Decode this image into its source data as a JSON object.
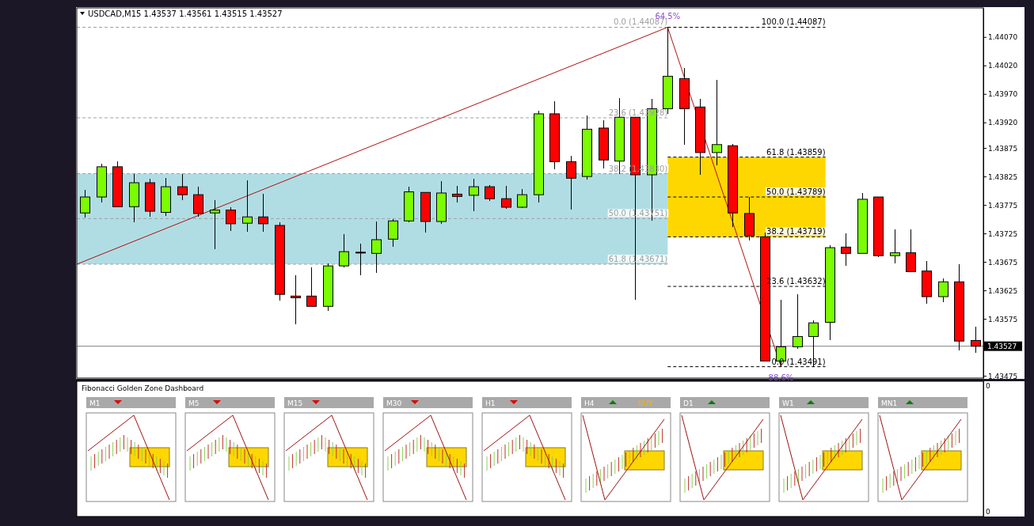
{
  "chart_data": [
    {
      "type": "candlestick",
      "title": "USDCAD,M15  1.43537 1.43561 1.43515 1.43527",
      "categories": [
        null,
        null,
        null,
        null,
        null,
        null,
        null,
        null,
        null,
        null,
        null,
        null,
        null,
        null,
        null,
        null,
        null,
        null,
        null,
        null,
        null,
        null,
        null,
        null,
        null,
        null,
        null,
        null,
        null,
        null,
        null,
        null,
        null,
        null,
        null,
        null,
        null,
        null,
        null,
        null,
        null,
        null,
        null,
        null,
        null,
        null,
        null,
        null,
        null,
        null,
        null,
        null,
        null,
        null,
        null,
        null
      ],
      "ohlc": [
        [
          1.43761,
          1.43802,
          1.43753,
          1.43789
        ],
        [
          1.43789,
          1.43847,
          1.43779,
          1.43842
        ],
        [
          1.43842,
          1.43852,
          1.43772,
          1.43772
        ],
        [
          1.43772,
          1.43829,
          1.43745,
          1.43814
        ],
        [
          1.43814,
          1.43821,
          1.43755,
          1.43764
        ],
        [
          1.43762,
          1.43823,
          1.43756,
          1.43807
        ],
        [
          1.43807,
          1.43829,
          1.43783,
          1.43793
        ],
        [
          1.43793,
          1.43807,
          1.43755,
          1.4376
        ],
        [
          1.43761,
          1.43783,
          1.43697,
          1.43766
        ],
        [
          1.43766,
          1.43771,
          1.4373,
          1.43742
        ],
        [
          1.43743,
          1.43818,
          1.43728,
          1.43754
        ],
        [
          1.43754,
          1.43794,
          1.43728,
          1.43742
        ],
        [
          1.43739,
          1.43744,
          1.43607,
          1.43618
        ],
        [
          1.43615,
          1.43652,
          1.43565,
          1.43612
        ],
        [
          1.43615,
          1.43665,
          1.43597,
          1.43597
        ],
        [
          1.43597,
          1.43673,
          1.43589,
          1.43668
        ],
        [
          1.43668,
          1.43724,
          1.43665,
          1.43693
        ],
        [
          1.43692,
          1.43707,
          1.43651,
          1.43692
        ],
        [
          1.4369,
          1.43746,
          1.43656,
          1.43714
        ],
        [
          1.43715,
          1.4375,
          1.43701,
          1.43747
        ],
        [
          1.43747,
          1.43807,
          1.43744,
          1.43798
        ],
        [
          1.43797,
          1.43797,
          1.43727,
          1.43746
        ],
        [
          1.43746,
          1.43817,
          1.43742,
          1.43796
        ],
        [
          1.43794,
          1.43809,
          1.43779,
          1.4379
        ],
        [
          1.43792,
          1.43821,
          1.43764,
          1.43807
        ],
        [
          1.43807,
          1.4381,
          1.43782,
          1.43786
        ],
        [
          1.43786,
          1.43808,
          1.43768,
          1.43771
        ],
        [
          1.43771,
          1.43803,
          1.43769,
          1.43793
        ],
        [
          1.43793,
          1.43941,
          1.43779,
          1.43935
        ],
        [
          1.43935,
          1.43957,
          1.43837,
          1.43851
        ],
        [
          1.43851,
          1.43861,
          1.43767,
          1.43822
        ],
        [
          1.43825,
          1.43932,
          1.4382,
          1.43908
        ],
        [
          1.4391,
          1.43924,
          1.43839,
          1.43854
        ],
        [
          1.43852,
          1.43962,
          1.4383,
          1.43929
        ],
        [
          1.43929,
          1.43929,
          1.43608,
          1.43828
        ],
        [
          1.43828,
          1.43961,
          1.43747,
          1.43944
        ],
        [
          1.43944,
          1.44087,
          1.43935,
          1.44001
        ],
        [
          1.43997,
          1.44015,
          1.43881,
          1.43944
        ],
        [
          1.43947,
          1.43961,
          1.43828,
          1.43867
        ],
        [
          1.43867,
          1.43995,
          1.43844,
          1.43881
        ],
        [
          1.43879,
          1.43882,
          1.43736,
          1.43761
        ],
        [
          1.4376,
          1.43789,
          1.43712,
          1.43721
        ],
        [
          1.43719,
          1.43726,
          1.43501,
          1.43501
        ],
        [
          1.43501,
          1.43608,
          1.43491,
          1.43526
        ],
        [
          1.43526,
          1.43618,
          1.43522,
          1.43544
        ],
        [
          1.43544,
          1.43573,
          1.43491,
          1.43568
        ],
        [
          1.43569,
          1.43704,
          1.43538,
          1.437
        ],
        [
          1.43701,
          1.43725,
          1.43668,
          1.4369
        ],
        [
          1.4369,
          1.43796,
          1.4369,
          1.43785
        ],
        [
          1.43789,
          1.43789,
          1.43684,
          1.43686
        ],
        [
          1.43686,
          1.43732,
          1.43672,
          1.43691
        ],
        [
          1.43691,
          1.43732,
          1.43657,
          1.43658
        ],
        [
          1.43659,
          1.43677,
          1.43602,
          1.43614
        ],
        [
          1.43614,
          1.43646,
          1.43605,
          1.4364
        ],
        [
          1.4364,
          1.43671,
          1.43519,
          1.43536
        ],
        [
          1.43537,
          1.43561,
          1.43515,
          1.43527
        ]
      ],
      "colors": [
        "#7cfc00",
        "#7cfc00",
        "#ff0000",
        "#7cfc00",
        "#ff0000",
        "#7cfc00",
        "#ff0000",
        "#ff0000",
        "#7cfc00",
        "#ff0000",
        "#7cfc00",
        "#ff0000",
        "#ff0000",
        "#ff0000",
        "#ff0000",
        "#7cfc00",
        "#7cfc00",
        "#000000",
        "#7cfc00",
        "#7cfc00",
        "#7cfc00",
        "#ff0000",
        "#7cfc00",
        "#ff0000",
        "#7cfc00",
        "#ff0000",
        "#ff0000",
        "#7cfc00",
        "#7cfc00",
        "#ff0000",
        "#ff0000",
        "#7cfc00",
        "#ff0000",
        "#7cfc00",
        "#ff0000",
        "#7cfc00",
        "#7cfc00",
        "#ff0000",
        "#ff0000",
        "#7cfc00",
        "#ff0000",
        "#ff0000",
        "#ff0000",
        "#7cfc00",
        "#7cfc00",
        "#7cfc00",
        "#7cfc00",
        "#ff0000",
        "#7cfc00",
        "#ff0000",
        "#7cfc00",
        "#ff0000",
        "#ff0000",
        "#7cfc00",
        "#ff0000",
        "#ff0000"
      ],
      "bands": [
        {
          "axis": "y",
          "from": 1.43671,
          "to": 1.4383,
          "color": "#b0dde4"
        },
        {
          "axis": "y",
          "from": 1.43719,
          "to": 1.43859,
          "color": "#ffd700"
        }
      ],
      "ref_lines": [
        {
          "axis": "y",
          "value": 1.44087,
          "label": "0.0 (1.44087)",
          "color": "#a0a0a0",
          "line_style": "dashed"
        },
        {
          "axis": "y",
          "value": 1.43928,
          "label": "23.6 (1.43928)",
          "color": "#a0a0a0",
          "line_style": "dashed"
        },
        {
          "axis": "y",
          "value": 1.4383,
          "label": "38.2 (1.43830)",
          "color": "#a0a0a0",
          "line_style": "dashed"
        },
        {
          "axis": "y",
          "value": 1.43751,
          "label": "50.0 (1.43751)",
          "color": "#a0a0a0",
          "line_style": "dashed"
        },
        {
          "axis": "y",
          "value": 1.43671,
          "label": "61.8 (1.43671)",
          "color": "#a0a0a0",
          "line_style": "dashed"
        },
        {
          "axis": "y",
          "value": 1.44087,
          "label": "100.0 (1.44087)",
          "color": "#000000",
          "line_style": "dashed"
        },
        {
          "axis": "y",
          "value": 1.43859,
          "label": "61.8 (1.43859)",
          "color": "#000000",
          "line_style": "dashed"
        },
        {
          "axis": "y",
          "value": 1.43789,
          "label": "50.0 (1.43789)",
          "color": "#000000",
          "line_style": "dashed"
        },
        {
          "axis": "y",
          "value": 1.43719,
          "label": "38.2 (1.43719)",
          "color": "#000000",
          "line_style": "dashed"
        },
        {
          "axis": "y",
          "value": 1.43632,
          "label": "23.6 (1.43632)",
          "color": "#000000",
          "line_style": "dashed"
        },
        {
          "axis": "y",
          "value": 1.43491,
          "label": "0.0 (1.43491)",
          "color": "#000000",
          "line_style": "dashed"
        },
        {
          "axis": "y",
          "value": 1.43527,
          "label": "1.43527",
          "color": "#808080",
          "line_style": "solid"
        }
      ],
      "annotations": [
        {
          "text": "64.5%",
          "y": 1.44087
        },
        {
          "text": "88.6%",
          "y": 1.43491
        }
      ],
      "ylim": [
        1.43471,
        1.44121
      ],
      "yticks": [
        {
          "value": 1.4407,
          "label": "1.44070"
        },
        {
          "value": 1.4402,
          "label": "1.44020"
        },
        {
          "value": 1.4397,
          "label": "1.43970"
        },
        {
          "value": 1.4392,
          "label": "1.43920"
        },
        {
          "value": 1.43875,
          "label": "1.43875"
        },
        {
          "value": 1.43825,
          "label": "1.43825"
        },
        {
          "value": 1.43775,
          "label": "1.43775"
        },
        {
          "value": 1.43725,
          "label": "1.43725"
        },
        {
          "value": 1.43675,
          "label": "1.43675"
        },
        {
          "value": 1.43625,
          "label": "1.43625"
        },
        {
          "value": 1.43575,
          "label": "1.43575"
        },
        {
          "value": 1.43475,
          "label": "1.43475"
        }
      ],
      "tick_labels": "y"
    },
    {
      "type": "other",
      "title": "Fibonacci Golden Zone Dashboard",
      "categories": [
        "M1",
        "M5",
        "M15",
        "M30",
        "H1",
        "H4",
        "D1",
        "W1",
        "MN1"
      ],
      "colors": [
        "#e00000",
        "#e00000",
        "#e00000",
        "#e00000",
        "#e00000",
        "#008000",
        "#008000",
        "#008000",
        "#008000"
      ],
      "annotations": [
        {
          "text": "BUY",
          "x": "H4"
        },
        "0",
        "0"
      ]
    }
  ]
}
